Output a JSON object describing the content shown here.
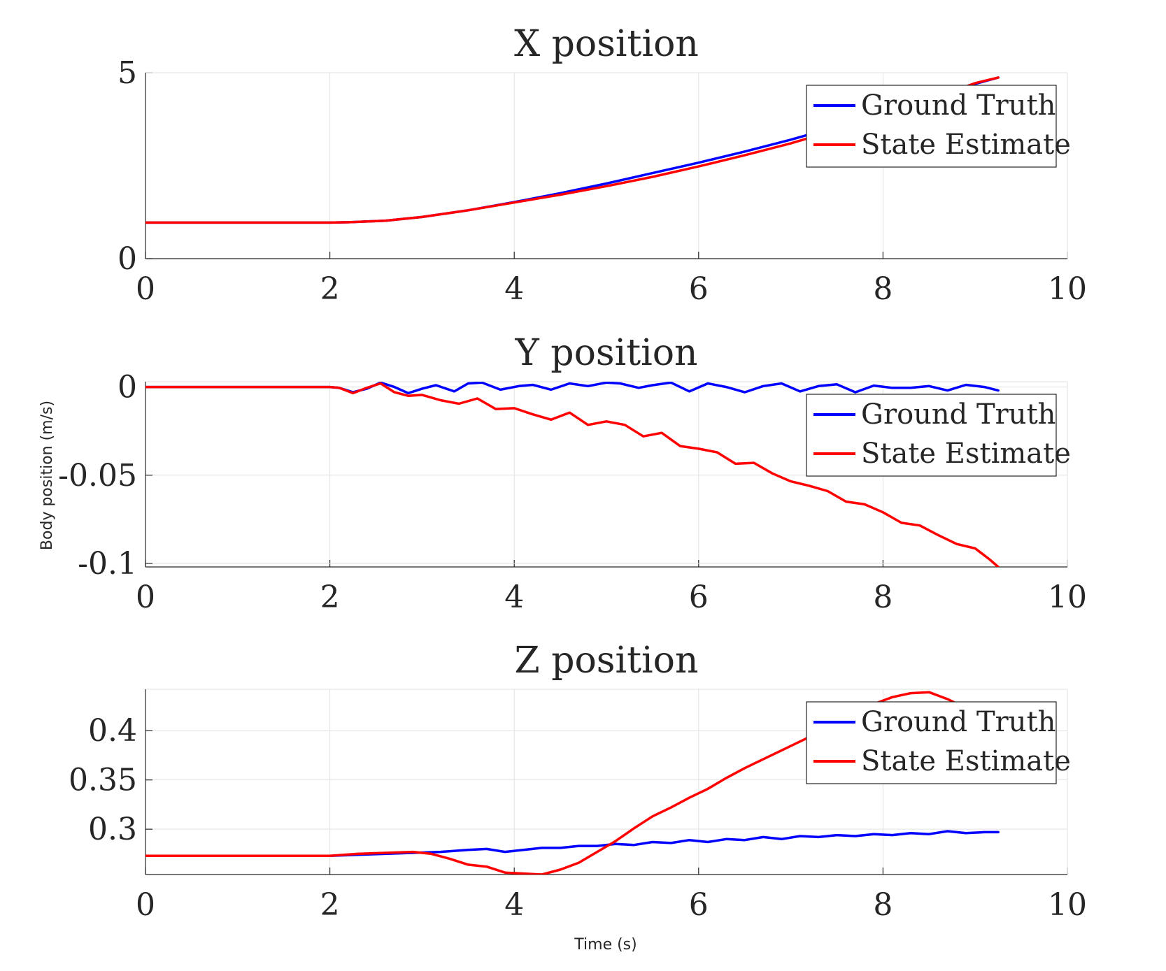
{
  "ylabel": "Body position (m/s)",
  "xlabel": "Time (s)",
  "colors": {
    "ground_truth": "#0000ff",
    "state_estimate": "#ff0000",
    "grid": "#e2e2e2",
    "axis": "#262626"
  },
  "chart_data": [
    {
      "type": "line",
      "title": "X position",
      "xlim": [
        0,
        10
      ],
      "ylim": [
        0,
        5
      ],
      "xticks": [
        "0",
        "2",
        "4",
        "6",
        "8",
        "10"
      ],
      "yticks": [
        {
          "value": 0,
          "label": "0"
        },
        {
          "value": 5,
          "label": "5"
        }
      ],
      "grid": true,
      "legend": {
        "location": "top-right",
        "entries": [
          "Ground Truth",
          "State Estimate"
        ]
      },
      "series": [
        {
          "name": "Ground Truth",
          "color": "#0000ff",
          "x": [
            0,
            1,
            2,
            2.2,
            2.6,
            3.0,
            3.5,
            4.0,
            4.5,
            5.0,
            5.5,
            6.0,
            6.5,
            7.0,
            7.5,
            8.0,
            8.5,
            9.0,
            9.25
          ],
          "y": [
            0.97,
            0.97,
            0.97,
            0.98,
            1.02,
            1.12,
            1.3,
            1.52,
            1.76,
            2.02,
            2.3,
            2.58,
            2.88,
            3.2,
            3.55,
            3.92,
            4.3,
            4.7,
            4.87
          ]
        },
        {
          "name": "State Estimate",
          "color": "#ff0000",
          "x": [
            0,
            1,
            2,
            2.2,
            2.6,
            3.0,
            3.5,
            4.0,
            4.5,
            5.0,
            5.5,
            6.0,
            6.5,
            7.0,
            7.5,
            8.0,
            8.5,
            9.0,
            9.25
          ],
          "y": [
            0.97,
            0.97,
            0.97,
            0.98,
            1.02,
            1.12,
            1.3,
            1.51,
            1.72,
            1.95,
            2.2,
            2.48,
            2.78,
            3.1,
            3.47,
            3.86,
            4.27,
            4.72,
            4.87
          ]
        }
      ]
    },
    {
      "type": "line",
      "title": "Y position",
      "xlim": [
        0,
        10
      ],
      "ylim": [
        -0.102,
        0.003
      ],
      "xticks": [
        "0",
        "2",
        "4",
        "6",
        "8",
        "10"
      ],
      "yticks": [
        {
          "value": 0,
          "label": "0"
        },
        {
          "value": -0.05,
          "label": "-0.05"
        },
        {
          "value": -0.1,
          "label": "-0.1"
        }
      ],
      "grid": true,
      "legend": {
        "location": "top-right",
        "entries": [
          "Ground Truth",
          "State Estimate"
        ]
      },
      "series": [
        {
          "name": "Ground Truth",
          "color": "#0000ff",
          "x": [
            0,
            1,
            2,
            2.1,
            2.25,
            2.4,
            2.55,
            2.7,
            2.85,
            3.0,
            3.15,
            3.35,
            3.5,
            3.65,
            3.85,
            4.05,
            4.2,
            4.4,
            4.6,
            4.8,
            5.0,
            5.15,
            5.35,
            5.5,
            5.7,
            5.9,
            6.1,
            6.3,
            6.5,
            6.7,
            6.9,
            7.1,
            7.3,
            7.5,
            7.7,
            7.9,
            8.1,
            8.3,
            8.5,
            8.7,
            8.9,
            9.1,
            9.25
          ],
          "y": [
            0,
            0,
            0,
            -0.0005,
            -0.003,
            -0.001,
            0.0025,
            0,
            -0.0035,
            -0.001,
            0.001,
            -0.0025,
            0.002,
            0.0025,
            -0.0015,
            0.0005,
            0.0012,
            -0.0015,
            0.002,
            0.0005,
            0.0025,
            0.002,
            -0.0005,
            0.001,
            0.0025,
            -0.0025,
            0.002,
            0,
            -0.003,
            0.0005,
            0.002,
            -0.0025,
            0.0005,
            0.0015,
            -0.003,
            0.0008,
            -0.0005,
            -0.0005,
            0.0005,
            -0.002,
            0.0012,
            0,
            -0.002
          ]
        },
        {
          "name": "State Estimate",
          "color": "#ff0000",
          "x": [
            0,
            1,
            2,
            2.1,
            2.25,
            2.4,
            2.55,
            2.7,
            2.85,
            3.0,
            3.2,
            3.4,
            3.6,
            3.8,
            4.0,
            4.2,
            4.4,
            4.6,
            4.8,
            5.0,
            5.2,
            5.4,
            5.6,
            5.8,
            6.0,
            6.2,
            6.4,
            6.6,
            6.8,
            7.0,
            7.2,
            7.4,
            7.6,
            7.8,
            8.0,
            8.2,
            8.4,
            8.6,
            8.8,
            9.0,
            9.15,
            9.25
          ],
          "y": [
            0,
            0,
            0,
            -0.0005,
            -0.0035,
            -0.0005,
            0.002,
            -0.003,
            -0.005,
            -0.0045,
            -0.0075,
            -0.0095,
            -0.0065,
            -0.0125,
            -0.012,
            -0.0155,
            -0.0185,
            -0.0145,
            -0.0215,
            -0.0195,
            -0.0215,
            -0.028,
            -0.026,
            -0.0335,
            -0.035,
            -0.037,
            -0.0435,
            -0.043,
            -0.049,
            -0.0535,
            -0.056,
            -0.059,
            -0.065,
            -0.0665,
            -0.071,
            -0.077,
            -0.0785,
            -0.084,
            -0.089,
            -0.0915,
            -0.0975,
            -0.102
          ]
        }
      ]
    },
    {
      "type": "line",
      "title": "Z position",
      "xlim": [
        0,
        10
      ],
      "ylim": [
        0.254,
        0.442
      ],
      "xticks": [
        "0",
        "2",
        "4",
        "6",
        "8",
        "10"
      ],
      "yticks": [
        {
          "value": 0.3,
          "label": "0.3"
        },
        {
          "value": 0.35,
          "label": "0.35"
        },
        {
          "value": 0.4,
          "label": "0.4"
        }
      ],
      "grid": true,
      "legend": {
        "location": "top-right",
        "entries": [
          "Ground Truth",
          "State Estimate"
        ]
      },
      "series": [
        {
          "name": "Ground Truth",
          "color": "#0000ff",
          "x": [
            0,
            1,
            2,
            2.3,
            2.6,
            2.9,
            3.2,
            3.5,
            3.7,
            3.9,
            4.1,
            4.3,
            4.5,
            4.7,
            4.9,
            5.1,
            5.3,
            5.5,
            5.7,
            5.9,
            6.1,
            6.3,
            6.5,
            6.7,
            6.9,
            7.1,
            7.3,
            7.5,
            7.7,
            7.9,
            8.1,
            8.3,
            8.5,
            8.7,
            8.9,
            9.1,
            9.25
          ],
          "y": [
            0.273,
            0.273,
            0.273,
            0.274,
            0.275,
            0.276,
            0.277,
            0.279,
            0.28,
            0.277,
            0.279,
            0.281,
            0.281,
            0.283,
            0.283,
            0.285,
            0.284,
            0.287,
            0.286,
            0.289,
            0.287,
            0.29,
            0.289,
            0.292,
            0.29,
            0.293,
            0.292,
            0.294,
            0.293,
            0.295,
            0.294,
            0.296,
            0.295,
            0.298,
            0.296,
            0.297,
            0.297
          ]
        },
        {
          "name": "State Estimate",
          "color": "#ff0000",
          "x": [
            0,
            1,
            2,
            2.3,
            2.6,
            2.9,
            3.1,
            3.3,
            3.5,
            3.7,
            3.9,
            4.1,
            4.3,
            4.5,
            4.7,
            4.9,
            5.1,
            5.3,
            5.5,
            5.7,
            5.9,
            6.1,
            6.3,
            6.5,
            6.7,
            6.9,
            7.1,
            7.3,
            7.5,
            7.7,
            7.9,
            8.1,
            8.3,
            8.5,
            8.7,
            8.9
          ],
          "y": [
            0.273,
            0.273,
            0.273,
            0.275,
            0.276,
            0.277,
            0.275,
            0.27,
            0.264,
            0.262,
            0.256,
            0.255,
            0.254,
            0.259,
            0.266,
            0.277,
            0.288,
            0.301,
            0.313,
            0.322,
            0.332,
            0.341,
            0.352,
            0.362,
            0.371,
            0.38,
            0.389,
            0.398,
            0.408,
            0.417,
            0.427,
            0.434,
            0.438,
            0.439,
            0.432,
            0.423
          ]
        }
      ]
    }
  ]
}
